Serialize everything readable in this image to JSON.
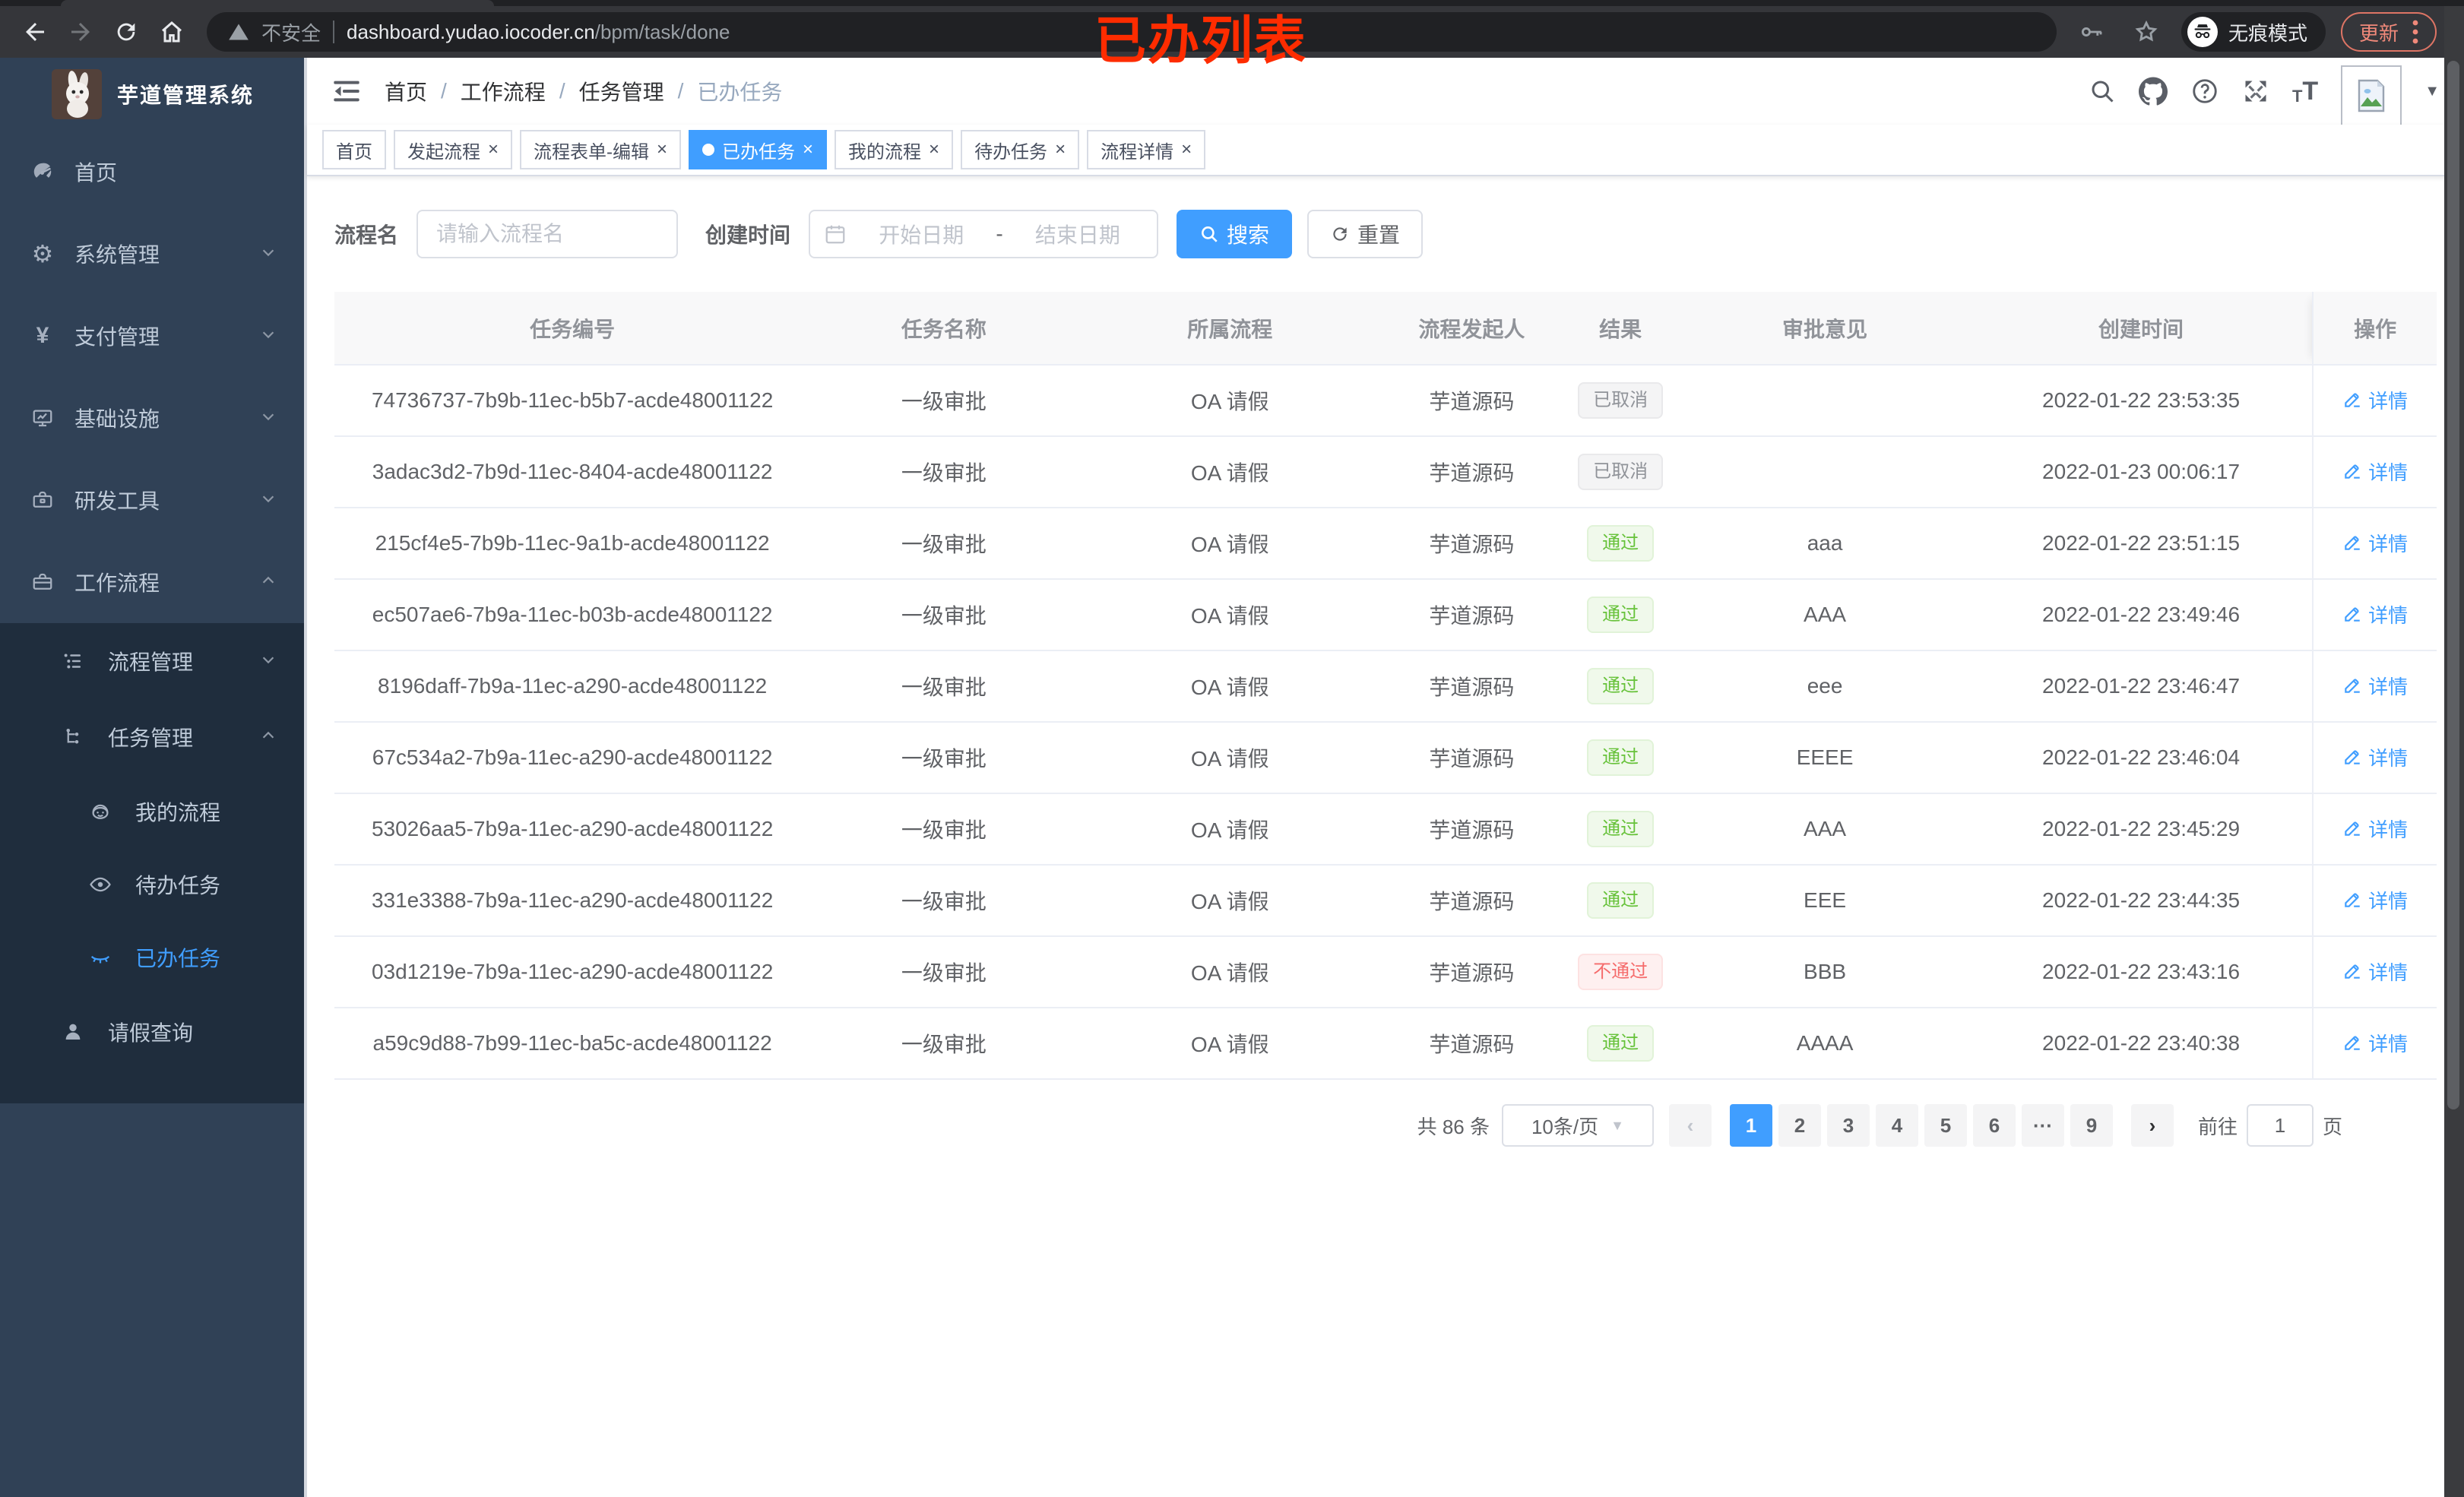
{
  "colors": {
    "accent": "#409eff",
    "success": "#67c23a",
    "danger": "#f56c6c",
    "info": "#909399",
    "sidebar_bg": "#304156",
    "submenu_bg": "#1f2d3d",
    "annotation": "#fe2c00"
  },
  "browser": {
    "security_text": "不安全",
    "url_host": "dashboard.yudao.iocoder.cn",
    "url_path": "/bpm/task/done",
    "incognito_label": "无痕模式",
    "update_label": "更新"
  },
  "annotation": {
    "text": "已办列表"
  },
  "sidebar": {
    "title": "芋道管理系统",
    "items": [
      {
        "label": "首页",
        "icon": "dashboard-icon",
        "level": 1
      },
      {
        "label": "系统管理",
        "icon": "gear-icon",
        "level": 1,
        "chevron": "down"
      },
      {
        "label": "支付管理",
        "icon": "yen-icon",
        "level": 1,
        "chevron": "down"
      },
      {
        "label": "基础设施",
        "icon": "monitor-icon",
        "level": 1,
        "chevron": "down"
      },
      {
        "label": "研发工具",
        "icon": "toolbox-icon",
        "level": 1,
        "chevron": "down"
      },
      {
        "label": "工作流程",
        "icon": "briefcase-icon",
        "level": 1,
        "chevron": "up"
      },
      {
        "label": "流程管理",
        "icon": "list-tree-icon",
        "level": 2,
        "chevron": "down"
      },
      {
        "label": "任务管理",
        "icon": "org-tree-icon",
        "level": 2,
        "chevron": "up"
      },
      {
        "label": "我的流程",
        "icon": "robot-icon",
        "level": 3
      },
      {
        "label": "待办任务",
        "icon": "eye-open-icon",
        "level": 3
      },
      {
        "label": "已办任务",
        "icon": "eye-closed-icon",
        "level": 3,
        "active": true
      },
      {
        "label": "请假查询",
        "icon": "user-icon",
        "level": 2
      }
    ]
  },
  "header": {
    "breadcrumb": [
      "首页",
      "工作流程",
      "任务管理",
      "已办任务"
    ],
    "icons": [
      "search-icon",
      "github-icon",
      "question-icon",
      "fullscreen-icon",
      "font-size-icon",
      "avatar",
      "caret-down-icon"
    ]
  },
  "tabs": [
    {
      "label": "首页",
      "closable": false,
      "active": false
    },
    {
      "label": "发起流程",
      "closable": true,
      "active": false
    },
    {
      "label": "流程表单-编辑",
      "closable": true,
      "active": false
    },
    {
      "label": "已办任务",
      "closable": true,
      "active": true
    },
    {
      "label": "我的流程",
      "closable": true,
      "active": false
    },
    {
      "label": "待办任务",
      "closable": true,
      "active": false
    },
    {
      "label": "流程详情",
      "closable": true,
      "active": false
    }
  ],
  "filters": {
    "name_label": "流程名",
    "name_placeholder": "请输入流程名",
    "time_label": "创建时间",
    "start_placeholder": "开始日期",
    "range_separator": "-",
    "end_placeholder": "结束日期",
    "search_label": "搜索",
    "reset_label": "重置"
  },
  "table": {
    "columns": [
      "任务编号",
      "任务名称",
      "所属流程",
      "流程发起人",
      "结果",
      "审批意见",
      "创建时间",
      "操作"
    ],
    "action_label": "详情",
    "rows": [
      {
        "id": "74736737-7b9b-11ec-b5b7-acde48001122",
        "name": "一级审批",
        "process": "OA 请假",
        "starter": "芋道源码",
        "result": {
          "label": "已取消",
          "type": "info"
        },
        "opinion": "",
        "time": "2022-01-22 23:53:35"
      },
      {
        "id": "3adac3d2-7b9d-11ec-8404-acde48001122",
        "name": "一级审批",
        "process": "OA 请假",
        "starter": "芋道源码",
        "result": {
          "label": "已取消",
          "type": "info"
        },
        "opinion": "",
        "time": "2022-01-23 00:06:17"
      },
      {
        "id": "215cf4e5-7b9b-11ec-9a1b-acde48001122",
        "name": "一级审批",
        "process": "OA 请假",
        "starter": "芋道源码",
        "result": {
          "label": "通过",
          "type": "success"
        },
        "opinion": "aaa",
        "time": "2022-01-22 23:51:15"
      },
      {
        "id": "ec507ae6-7b9a-11ec-b03b-acde48001122",
        "name": "一级审批",
        "process": "OA 请假",
        "starter": "芋道源码",
        "result": {
          "label": "通过",
          "type": "success"
        },
        "opinion": "AAA",
        "time": "2022-01-22 23:49:46"
      },
      {
        "id": "8196daff-7b9a-11ec-a290-acde48001122",
        "name": "一级审批",
        "process": "OA 请假",
        "starter": "芋道源码",
        "result": {
          "label": "通过",
          "type": "success"
        },
        "opinion": "eee",
        "time": "2022-01-22 23:46:47"
      },
      {
        "id": "67c534a2-7b9a-11ec-a290-acde48001122",
        "name": "一级审批",
        "process": "OA 请假",
        "starter": "芋道源码",
        "result": {
          "label": "通过",
          "type": "success"
        },
        "opinion": "EEEE",
        "time": "2022-01-22 23:46:04"
      },
      {
        "id": "53026aa5-7b9a-11ec-a290-acde48001122",
        "name": "一级审批",
        "process": "OA 请假",
        "starter": "芋道源码",
        "result": {
          "label": "通过",
          "type": "success"
        },
        "opinion": "AAA",
        "time": "2022-01-22 23:45:29"
      },
      {
        "id": "331e3388-7b9a-11ec-a290-acde48001122",
        "name": "一级审批",
        "process": "OA 请假",
        "starter": "芋道源码",
        "result": {
          "label": "通过",
          "type": "success"
        },
        "opinion": "EEE",
        "time": "2022-01-22 23:44:35"
      },
      {
        "id": "03d1219e-7b9a-11ec-a290-acde48001122",
        "name": "一级审批",
        "process": "OA 请假",
        "starter": "芋道源码",
        "result": {
          "label": "不通过",
          "type": "danger"
        },
        "opinion": "BBB",
        "time": "2022-01-22 23:43:16"
      },
      {
        "id": "a59c9d88-7b99-11ec-ba5c-acde48001122",
        "name": "一级审批",
        "process": "OA 请假",
        "starter": "芋道源码",
        "result": {
          "label": "通过",
          "type": "success"
        },
        "opinion": "AAAA",
        "time": "2022-01-22 23:40:38"
      }
    ]
  },
  "pagination": {
    "total_text": "共 86 条",
    "page_size": "10条/页",
    "pages": [
      "1",
      "2",
      "3",
      "4",
      "5",
      "6",
      "···",
      "9"
    ],
    "active_page": "1",
    "goto_label": "前往",
    "goto_value": "1",
    "page_unit": "页"
  }
}
